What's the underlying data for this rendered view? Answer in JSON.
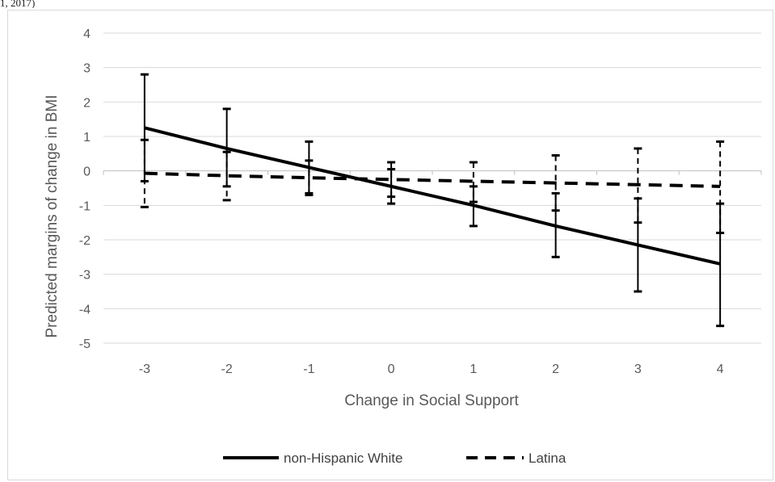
{
  "top_fragment": "1, 2017)",
  "chart_data": {
    "type": "line",
    "xlabel": "Change in Social Support",
    "ylabel": "Predicted margins of change in BMI",
    "x": [
      -3,
      -2,
      -1,
      0,
      1,
      2,
      3,
      4
    ],
    "xlim": [
      -3,
      4
    ],
    "ylim": [
      -5,
      4
    ],
    "yticks": [
      4,
      3,
      2,
      1,
      0,
      -1,
      -2,
      -3,
      -4,
      -5
    ],
    "grid": "horizontal",
    "legend_position": "bottom",
    "series": [
      {
        "name": "non-Hispanic White",
        "style": "solid",
        "color": "#000000",
        "values": [
          1.25,
          0.65,
          0.1,
          -0.45,
          -1.0,
          -1.6,
          -2.15,
          -2.7
        ],
        "error_low": [
          -0.3,
          -0.45,
          -0.65,
          -0.95,
          -1.6,
          -2.5,
          -3.5,
          -4.5
        ],
        "error_high": [
          2.8,
          1.8,
          0.85,
          0.05,
          -0.45,
          -0.65,
          -0.8,
          -0.95
        ]
      },
      {
        "name": "Latina",
        "style": "dashed",
        "color": "#000000",
        "values": [
          -0.07,
          -0.14,
          -0.2,
          -0.25,
          -0.3,
          -0.35,
          -0.4,
          -0.45
        ],
        "error_low": [
          -1.05,
          -0.85,
          -0.7,
          -0.75,
          -0.9,
          -1.15,
          -1.5,
          -1.8
        ],
        "error_high": [
          0.9,
          0.55,
          0.3,
          0.25,
          0.25,
          0.45,
          0.65,
          0.85
        ]
      }
    ]
  }
}
